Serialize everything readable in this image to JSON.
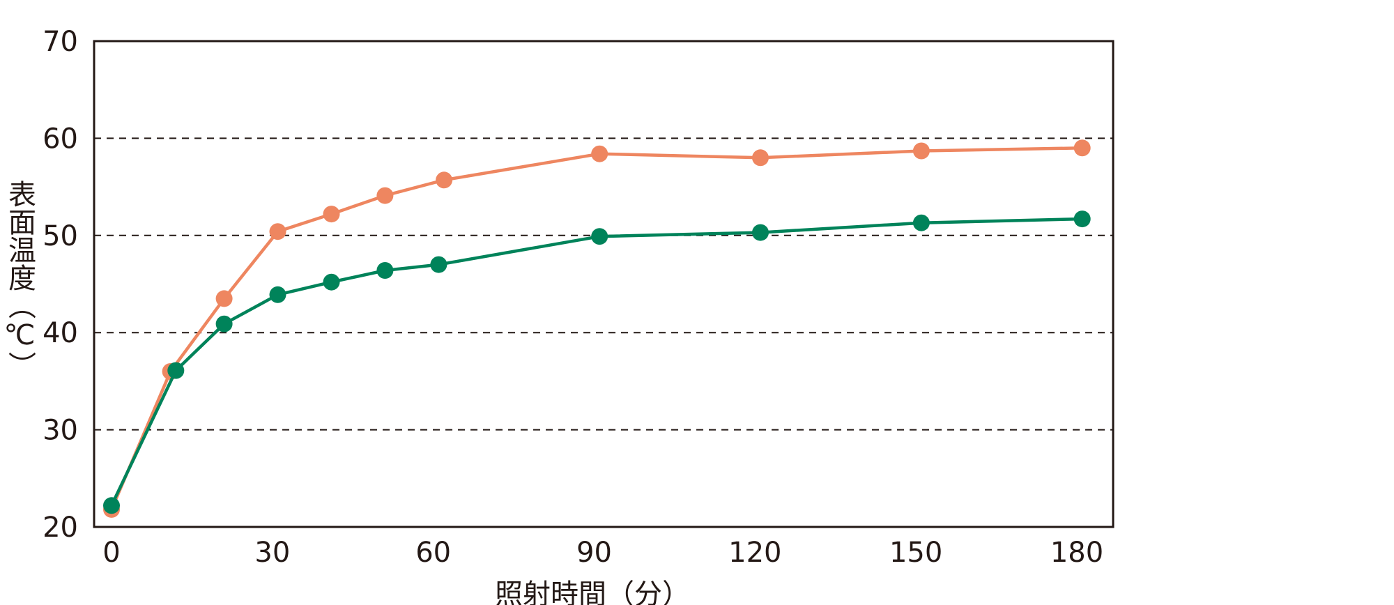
{
  "chart_data": {
    "type": "line",
    "xlabel": "照射時間（分）",
    "ylabel": "表面温度（℃）",
    "xlim": [
      0,
      180
    ],
    "ylim": [
      20,
      70
    ],
    "x_ticks": [
      "0",
      "30",
      "60",
      "90",
      "120",
      "150",
      "180"
    ],
    "y_ticks": [
      "20",
      "30",
      "40",
      "50",
      "60",
      "70"
    ],
    "grid": "horizontal dashed at 30, 40, 50, 60",
    "series": [
      {
        "color": "#EE8660",
        "points": [
          [
            0,
            21.8
          ],
          [
            11,
            36.0
          ],
          [
            21,
            43.5
          ],
          [
            31,
            50.4
          ],
          [
            41,
            52.2
          ],
          [
            51,
            54.1
          ],
          [
            62,
            55.7
          ],
          [
            91,
            58.4
          ],
          [
            121,
            58.0
          ],
          [
            151,
            58.7
          ],
          [
            181,
            59.0
          ]
        ]
      },
      {
        "color": "#00835A",
        "points": [
          [
            0,
            22.2
          ],
          [
            12,
            36.1
          ],
          [
            21,
            40.9
          ],
          [
            31,
            43.9
          ],
          [
            41,
            45.2
          ],
          [
            51,
            46.4
          ],
          [
            61,
            47.0
          ],
          [
            91,
            49.9
          ],
          [
            121,
            50.3
          ],
          [
            151,
            51.3
          ],
          [
            181,
            51.7
          ]
        ]
      }
    ]
  }
}
